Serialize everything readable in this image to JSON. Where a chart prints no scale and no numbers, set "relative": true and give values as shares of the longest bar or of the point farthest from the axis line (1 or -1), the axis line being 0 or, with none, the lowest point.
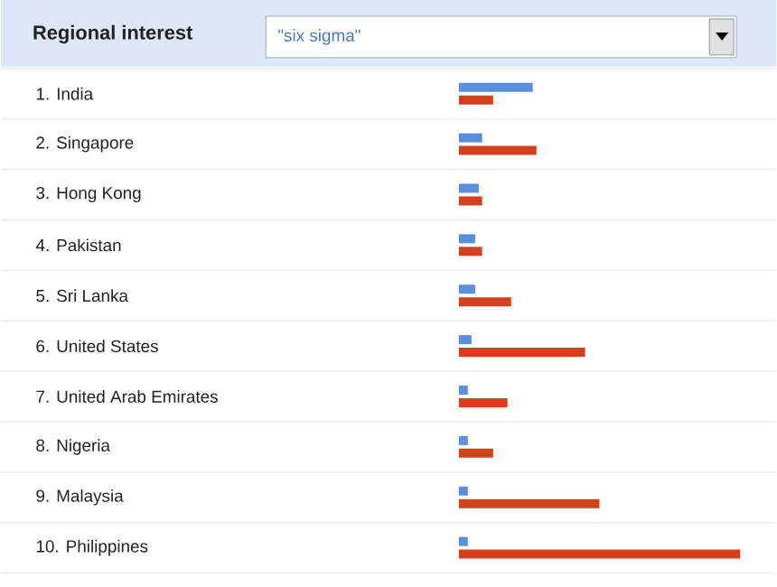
{
  "chart_data": {
    "type": "bar",
    "orientation": "horizontal",
    "relative": true,
    "title": "Regional interest",
    "subtitle": "\"six sigma\"",
    "categories": [
      "1. India",
      "2. Singapore",
      "3. Hong Kong",
      "4. Pakistan",
      "5. Sri Lanka",
      "6. United States",
      "7. United Arab Emirates",
      "8. Nigeria",
      "9. Malaysia",
      "10. Philippines"
    ],
    "series": [
      {
        "color": "#5a8fdb",
        "values": [
          0.263,
          0.083,
          0.071,
          0.058,
          0.058,
          0.045,
          0.032,
          0.032,
          0.032,
          0.032
        ]
      },
      {
        "color": "#d2401c",
        "values": [
          0.122,
          0.276,
          0.083,
          0.083,
          0.186,
          0.449,
          0.173,
          0.122,
          0.5,
          1
        ]
      }
    ]
  }
}
